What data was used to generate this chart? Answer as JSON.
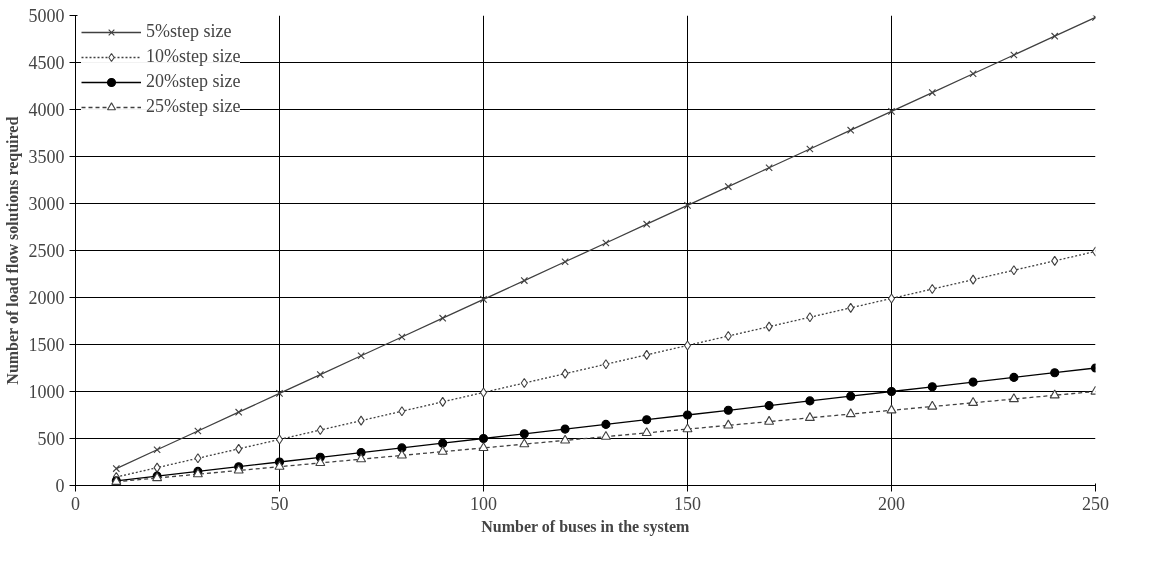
{
  "chart_data": {
    "type": "line",
    "xlabel": "Number of buses in the system",
    "ylabel": "Number of load flow solutions required",
    "x": [
      10,
      20,
      30,
      40,
      50,
      60,
      70,
      80,
      90,
      100,
      110,
      120,
      130,
      140,
      150,
      160,
      170,
      180,
      190,
      200,
      210,
      220,
      230,
      240,
      250
    ],
    "series": [
      {
        "name": "5%step size",
        "color": "#404040",
        "marker": "cross",
        "line_style": "solid",
        "values": [
          180,
          380,
          580,
          780,
          980,
          1180,
          1380,
          1580,
          1780,
          1980,
          2180,
          2380,
          2580,
          2780,
          2980,
          3180,
          3380,
          3580,
          3780,
          3980,
          4180,
          4380,
          4580,
          4780,
          4980
        ]
      },
      {
        "name": "10%step size",
        "color": "#404040",
        "marker": "diamond",
        "line_style": "dotted",
        "values": [
          90,
          190,
          290,
          390,
          490,
          590,
          690,
          790,
          890,
          990,
          1090,
          1190,
          1290,
          1390,
          1490,
          1590,
          1690,
          1790,
          1890,
          1990,
          2090,
          2190,
          2290,
          2390,
          2490
        ]
      },
      {
        "name": "20%step size",
        "color": "#000000",
        "marker": "circle",
        "line_style": "solid",
        "values": [
          50,
          100,
          150,
          200,
          250,
          300,
          350,
          400,
          450,
          500,
          550,
          600,
          650,
          700,
          750,
          800,
          850,
          900,
          950,
          1000,
          1050,
          1100,
          1150,
          1200,
          1250
        ]
      },
      {
        "name": "25%step size",
        "color": "#404040",
        "marker": "triangle",
        "line_style": "dashed",
        "values": [
          40,
          80,
          120,
          160,
          200,
          240,
          280,
          320,
          360,
          400,
          440,
          480,
          520,
          560,
          600,
          640,
          680,
          720,
          760,
          800,
          840,
          880,
          920,
          960,
          1000
        ]
      }
    ],
    "xlim": [
      0,
      250
    ],
    "xticks": [
      0,
      50,
      100,
      150,
      200,
      250
    ],
    "ylim": [
      0,
      5000
    ],
    "yticks": [
      0,
      500,
      1000,
      1500,
      2000,
      2500,
      3000,
      3500,
      4000,
      4500,
      5000
    ],
    "grid": true,
    "legend": "top left"
  }
}
